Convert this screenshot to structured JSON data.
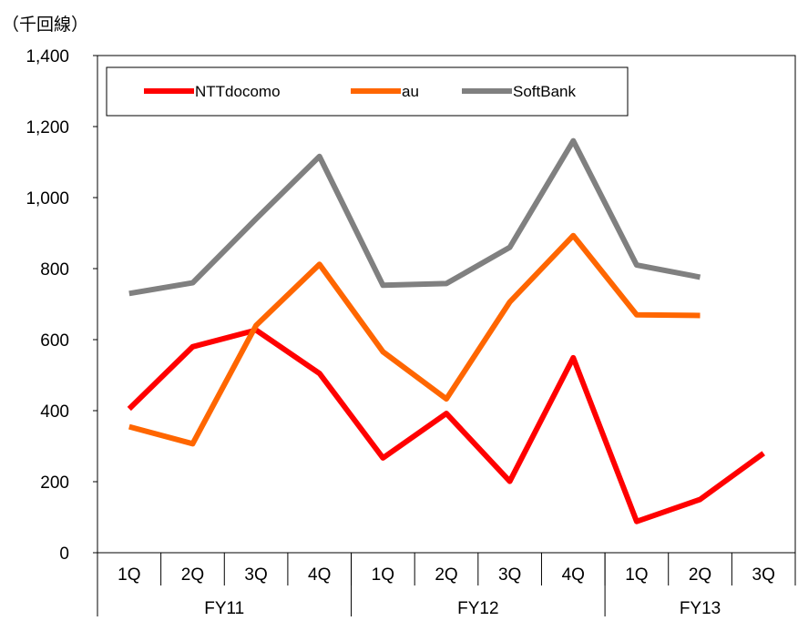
{
  "chart_data": {
    "type": "line",
    "unit_label": "（千回線）",
    "ylim": [
      0,
      1400
    ],
    "yticks": [
      0,
      200,
      400,
      600,
      800,
      1000,
      1200,
      1400
    ],
    "ytick_labels": [
      "0",
      "200",
      "400",
      "600",
      "800",
      "1,000",
      "1,200",
      "1,400"
    ],
    "categories": [
      "1Q",
      "2Q",
      "3Q",
      "4Q",
      "1Q",
      "2Q",
      "3Q",
      "4Q",
      "1Q",
      "2Q",
      "3Q"
    ],
    "groups": [
      {
        "label": "FY11",
        "span": 4
      },
      {
        "label": "FY12",
        "span": 4
      },
      {
        "label": "FY13",
        "span": 3
      }
    ],
    "grid": false,
    "legend_position": "top",
    "series": [
      {
        "name": "NTTdocomo",
        "color": "#ff0000",
        "values": [
          405,
          580,
          627,
          505,
          267,
          392,
          201,
          549,
          88,
          150,
          280
        ]
      },
      {
        "name": "au",
        "color": "#ff6600",
        "values": [
          355,
          307,
          640,
          812,
          566,
          433,
          706,
          893,
          670,
          668,
          null
        ]
      },
      {
        "name": "SoftBank",
        "color": "#808080",
        "values": [
          730,
          760,
          940,
          1116,
          753,
          758,
          860,
          1160,
          810,
          776,
          null
        ]
      }
    ]
  }
}
